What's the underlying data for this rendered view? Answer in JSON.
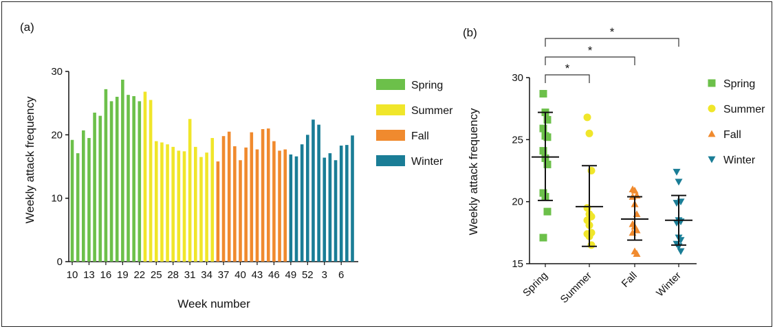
{
  "chart_data": [
    {
      "type": "bar",
      "panel_label": "(a)",
      "xlabel": "Week number",
      "ylabel": "Weekly attack frequency",
      "ylim": [
        0,
        30
      ],
      "yticks": [
        "0",
        "10",
        "20",
        "30"
      ],
      "xtick_labels": [
        "10",
        "13",
        "16",
        "19",
        "22",
        "25",
        "28",
        "31",
        "34",
        "37",
        "40",
        "43",
        "46",
        "49",
        "52",
        "3",
        "6"
      ],
      "weeks": [
        "10",
        "11",
        "12",
        "13",
        "14",
        "15",
        "16",
        "17",
        "18",
        "19",
        "20",
        "21",
        "22",
        "23",
        "24",
        "25",
        "26",
        "27",
        "28",
        "29",
        "30",
        "31",
        "32",
        "33",
        "34",
        "35",
        "36",
        "37",
        "38",
        "39",
        "40",
        "41",
        "42",
        "43",
        "44",
        "45",
        "46",
        "47",
        "48",
        "49",
        "50",
        "51",
        "52",
        "1",
        "2",
        "3",
        "4",
        "5",
        "6",
        "7",
        "8"
      ],
      "series": [
        {
          "name": "Spring",
          "color": "#6cc04a",
          "values": [
            19.2,
            17.1,
            20.7,
            19.5,
            23.5,
            23.0,
            27.2,
            25.3,
            26.0,
            28.7,
            26.3,
            26.1,
            25.3
          ]
        },
        {
          "name": "Summer",
          "color": "#f0e62a",
          "values": [
            26.8,
            25.5,
            19.0,
            18.8,
            18.5,
            18.1,
            17.5,
            17.4,
            22.5,
            18.1,
            16.5,
            17.2,
            19.5
          ]
        },
        {
          "name": "Fall",
          "color": "#f08a2e",
          "values": [
            15.8,
            19.8,
            20.5,
            18.2,
            16.0,
            18.0,
            20.4,
            17.7,
            20.9,
            21.0,
            19.0,
            17.5,
            17.7
          ]
        },
        {
          "name": "Winter",
          "color": "#1a7d96",
          "values": [
            16.9,
            16.6,
            18.5,
            20.0,
            22.4,
            21.6,
            16.4,
            17.1,
            16.0,
            18.3,
            18.4,
            19.9
          ]
        }
      ],
      "legend": [
        "Spring",
        "Summer",
        "Fall",
        "Winter"
      ]
    },
    {
      "type": "scatter",
      "panel_label": "(b)",
      "ylabel": "Weekly attack frequency",
      "ylim": [
        15,
        30
      ],
      "yticks": [
        "15",
        "20",
        "25",
        "30"
      ],
      "categories": [
        "Spring",
        "Summer",
        "Fall",
        "Winter"
      ],
      "groups": [
        {
          "name": "Spring",
          "color": "#6cc04a",
          "marker": "square",
          "points": [
            28.7,
            27.2,
            26.6,
            25.9,
            25.3,
            25.2,
            24.1,
            23.5,
            23.0,
            20.7,
            20.4,
            19.2,
            17.1
          ],
          "mean": 23.6,
          "sd_low": 20.1,
          "sd_high": 27.2
        },
        {
          "name": "Summer",
          "color": "#f0e62a",
          "marker": "circle",
          "points": [
            26.8,
            25.5,
            22.5,
            19.5,
            19.0,
            18.8,
            18.5,
            18.1,
            17.5,
            17.4,
            17.2,
            16.5
          ],
          "mean": 19.6,
          "sd_low": 16.4,
          "sd_high": 22.9
        },
        {
          "name": "Fall",
          "color": "#f08a2e",
          "marker": "triangle-up",
          "points": [
            21.0,
            20.9,
            20.5,
            20.4,
            19.8,
            19.0,
            18.2,
            18.0,
            17.7,
            17.5,
            16.0,
            15.8
          ],
          "mean": 18.6,
          "sd_low": 16.9,
          "sd_high": 20.4
        },
        {
          "name": "Winter",
          "color": "#1a7d96",
          "marker": "triangle-down",
          "points": [
            22.4,
            21.6,
            20.0,
            19.9,
            18.5,
            18.4,
            18.3,
            17.1,
            16.9,
            16.6,
            16.4,
            16.0
          ],
          "mean": 18.5,
          "sd_low": 16.5,
          "sd_high": 20.5
        }
      ],
      "significance": [
        {
          "from": "Spring",
          "to": "Summer",
          "label": "*"
        },
        {
          "from": "Spring",
          "to": "Fall",
          "label": "*"
        },
        {
          "from": "Spring",
          "to": "Winter",
          "label": "*"
        }
      ],
      "legend": [
        "Spring",
        "Summer",
        "Fall",
        "Winter"
      ]
    }
  ]
}
